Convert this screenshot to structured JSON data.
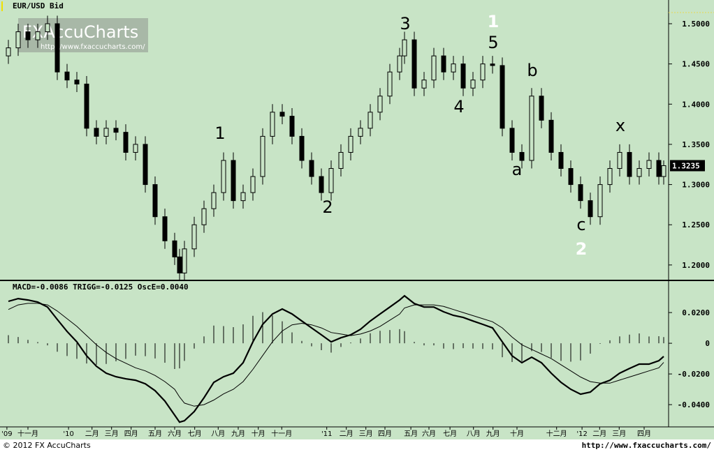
{
  "chart_data": [
    {
      "type": "candlestick",
      "title": "EUR/USD Bid",
      "x": [
        1,
        3,
        5,
        7,
        9,
        11,
        13,
        15,
        17,
        19,
        21,
        23,
        25,
        27,
        29,
        31,
        33,
        35,
        36,
        37,
        39,
        41,
        43,
        45,
        47,
        49,
        51,
        53,
        55,
        57,
        59,
        61,
        63,
        65,
        67,
        69,
        71,
        73,
        75,
        77,
        79,
        81,
        82,
        84,
        86,
        88,
        90,
        92,
        94,
        96,
        98,
        100,
        102,
        104,
        106,
        108,
        110,
        112,
        114,
        116,
        118,
        120,
        122,
        124,
        126,
        128,
        130,
        132,
        134,
        135
      ],
      "open": [
        1.46,
        1.47,
        1.49,
        1.48,
        1.49,
        1.5,
        1.44,
        1.43,
        1.425,
        1.37,
        1.36,
        1.37,
        1.365,
        1.34,
        1.35,
        1.3,
        1.26,
        1.23,
        1.21,
        1.19,
        1.22,
        1.25,
        1.27,
        1.29,
        1.33,
        1.28,
        1.29,
        1.31,
        1.36,
        1.39,
        1.385,
        1.36,
        1.33,
        1.31,
        1.29,
        1.32,
        1.34,
        1.36,
        1.37,
        1.39,
        1.41,
        1.44,
        1.46,
        1.48,
        1.42,
        1.43,
        1.46,
        1.44,
        1.45,
        1.42,
        1.43,
        1.45,
        1.448,
        1.37,
        1.34,
        1.33,
        1.41,
        1.38,
        1.34,
        1.32,
        1.3,
        1.28,
        1.26,
        1.3,
        1.32,
        1.34,
        1.31,
        1.32,
        1.33,
        1.31
      ],
      "high": [
        1.48,
        1.5,
        1.5,
        1.5,
        1.51,
        1.51,
        1.45,
        1.44,
        1.435,
        1.38,
        1.38,
        1.38,
        1.375,
        1.36,
        1.36,
        1.31,
        1.27,
        1.24,
        1.22,
        1.23,
        1.26,
        1.28,
        1.3,
        1.34,
        1.34,
        1.3,
        1.32,
        1.37,
        1.4,
        1.4,
        1.395,
        1.37,
        1.34,
        1.32,
        1.33,
        1.35,
        1.37,
        1.38,
        1.4,
        1.42,
        1.45,
        1.47,
        1.49,
        1.49,
        1.44,
        1.47,
        1.47,
        1.46,
        1.46,
        1.44,
        1.46,
        1.46,
        1.458,
        1.38,
        1.35,
        1.42,
        1.42,
        1.39,
        1.35,
        1.33,
        1.31,
        1.29,
        1.31,
        1.33,
        1.35,
        1.35,
        1.33,
        1.34,
        1.34,
        1.33
      ],
      "low": [
        1.45,
        1.46,
        1.47,
        1.47,
        1.48,
        1.43,
        1.42,
        1.415,
        1.36,
        1.35,
        1.35,
        1.355,
        1.33,
        1.33,
        1.29,
        1.25,
        1.22,
        1.2,
        1.18,
        1.18,
        1.21,
        1.24,
        1.26,
        1.28,
        1.27,
        1.27,
        1.28,
        1.3,
        1.35,
        1.375,
        1.35,
        1.32,
        1.3,
        1.28,
        1.28,
        1.31,
        1.33,
        1.35,
        1.36,
        1.38,
        1.4,
        1.43,
        1.45,
        1.41,
        1.41,
        1.42,
        1.43,
        1.43,
        1.41,
        1.41,
        1.42,
        1.438,
        1.36,
        1.33,
        1.32,
        1.32,
        1.37,
        1.33,
        1.31,
        1.29,
        1.27,
        1.25,
        1.25,
        1.29,
        1.31,
        1.3,
        1.3,
        1.31,
        1.3,
        1.3
      ],
      "close": [
        1.47,
        1.49,
        1.48,
        1.49,
        1.5,
        1.44,
        1.43,
        1.425,
        1.37,
        1.36,
        1.37,
        1.365,
        1.34,
        1.35,
        1.3,
        1.26,
        1.23,
        1.21,
        1.19,
        1.22,
        1.25,
        1.27,
        1.29,
        1.33,
        1.28,
        1.29,
        1.31,
        1.36,
        1.39,
        1.385,
        1.36,
        1.33,
        1.31,
        1.29,
        1.32,
        1.34,
        1.36,
        1.37,
        1.39,
        1.41,
        1.44,
        1.46,
        1.48,
        1.42,
        1.43,
        1.46,
        1.44,
        1.45,
        1.42,
        1.43,
        1.45,
        1.448,
        1.37,
        1.34,
        1.33,
        1.41,
        1.38,
        1.34,
        1.32,
        1.3,
        1.28,
        1.26,
        1.3,
        1.32,
        1.34,
        1.31,
        1.32,
        1.33,
        1.31,
        1.3235
      ],
      "xlim": [
        0,
        136
      ],
      "ylim": [
        1.1808,
        1.5295
      ],
      "yticks": [
        {
          "value": 1.5,
          "label": "1.5000"
        },
        {
          "value": 1.45,
          "label": "1.4500"
        },
        {
          "value": 1.4,
          "label": "1.4000"
        },
        {
          "value": 1.35,
          "label": "1.3500"
        },
        {
          "value": 1.3,
          "label": "1.3000"
        },
        {
          "value": 1.25,
          "label": "1.2500"
        },
        {
          "value": 1.2,
          "label": "1.2000"
        }
      ],
      "last_price": 1.3235,
      "annotations": [
        "1",
        "2",
        "3",
        "4",
        "5",
        "a",
        "b",
        "c",
        "x"
      ],
      "highlight_annotations": [
        "1",
        "2"
      ]
    },
    {
      "type": "macd",
      "title": "MACD=-0.0086 TRIGG=-0.0125 OscE=0.0040",
      "x": [
        1,
        3,
        5,
        7,
        9,
        11,
        13,
        15,
        17,
        19,
        21,
        23,
        25,
        27,
        29,
        31,
        33,
        35,
        36,
        37,
        39,
        41,
        43,
        45,
        47,
        49,
        51,
        53,
        55,
        57,
        59,
        61,
        63,
        65,
        67,
        69,
        71,
        73,
        75,
        77,
        79,
        81,
        82,
        84,
        86,
        88,
        90,
        92,
        94,
        96,
        98,
        100,
        102,
        104,
        106,
        108,
        110,
        112,
        114,
        116,
        118,
        120,
        122,
        124,
        126,
        128,
        130,
        132,
        134,
        135
      ],
      "macd": [
        0.0273,
        0.0291,
        0.0282,
        0.0268,
        0.0236,
        0.0155,
        0.0077,
        0.0009,
        -0.0082,
        -0.015,
        -0.0195,
        -0.0218,
        -0.0232,
        -0.0241,
        -0.0264,
        -0.0309,
        -0.0377,
        -0.0468,
        -0.0514,
        -0.0505,
        -0.0445,
        -0.0355,
        -0.0255,
        -0.0218,
        -0.0195,
        -0.0127,
        0.0009,
        0.0123,
        0.0191,
        0.0223,
        0.0191,
        0.0145,
        0.01,
        0.0055,
        0.0009,
        0.0036,
        0.0055,
        0.0091,
        0.0145,
        0.0191,
        0.0236,
        0.0282,
        0.0309,
        0.0259,
        0.0236,
        0.0236,
        0.0205,
        0.0182,
        0.0168,
        0.0145,
        0.0123,
        0.01,
        0.0009,
        -0.0082,
        -0.0127,
        -0.0091,
        -0.0127,
        -0.0195,
        -0.0255,
        -0.03,
        -0.0332,
        -0.0318,
        -0.0264,
        -0.0241,
        -0.0195,
        -0.0164,
        -0.0136,
        -0.0136,
        -0.0114,
        -0.0086
      ],
      "trigger": [
        0.022,
        0.025,
        0.026,
        0.026,
        0.025,
        0.021,
        0.016,
        0.011,
        0.005,
        -0.001,
        -0.006,
        -0.01,
        -0.013,
        -0.016,
        -0.018,
        -0.021,
        -0.025,
        -0.03,
        -0.035,
        -0.039,
        -0.041,
        -0.04,
        -0.037,
        -0.033,
        -0.03,
        -0.025,
        -0.017,
        -0.008,
        0.001,
        0.008,
        0.012,
        0.013,
        0.012,
        0.01,
        0.007,
        0.006,
        0.005,
        0.006,
        0.008,
        0.011,
        0.015,
        0.019,
        0.023,
        0.025,
        0.025,
        0.025,
        0.024,
        0.022,
        0.02,
        0.018,
        0.016,
        0.014,
        0.01,
        0.004,
        -0.001,
        -0.004,
        -0.007,
        -0.01,
        -0.014,
        -0.018,
        -0.022,
        -0.025,
        -0.026,
        -0.026,
        -0.024,
        -0.022,
        -0.02,
        -0.018,
        -0.016,
        -0.0125
      ],
      "oscillator": [
        0.0053,
        0.0041,
        0.0022,
        0.0008,
        -0.0014,
        -0.0055,
        -0.0083,
        -0.0101,
        -0.0132,
        -0.014,
        -0.0135,
        -0.0118,
        -0.0102,
        -0.0081,
        -0.0084,
        -0.0099,
        -0.0127,
        -0.0168,
        -0.0164,
        -0.0115,
        -0.0035,
        0.0045,
        0.0115,
        0.0112,
        0.0105,
        0.0123,
        0.0179,
        0.0203,
        0.0181,
        0.0143,
        0.0071,
        0.0015,
        -0.002,
        -0.0045,
        -0.0061,
        -0.0024,
        0.0005,
        0.0031,
        0.0065,
        0.0081,
        0.0086,
        0.0092,
        0.0079,
        0.0009,
        -0.0014,
        -0.0014,
        -0.0035,
        -0.0038,
        -0.0032,
        -0.0035,
        -0.0037,
        -0.004,
        -0.0091,
        -0.0122,
        -0.0117,
        -0.0051,
        -0.0057,
        -0.0095,
        -0.0115,
        -0.012,
        -0.0112,
        -0.0068,
        -0.0004,
        0.0019,
        0.0045,
        0.0056,
        0.0064,
        0.0044,
        0.0046,
        0.004
      ],
      "xlim": [
        0,
        136
      ],
      "ylim": [
        -0.0545,
        0.0405
      ],
      "yticks": [
        {
          "value": 0.02,
          "label": "0.0200"
        },
        0,
        {
          "value": -0.02,
          "label": "-0.0200"
        },
        {
          "value": -0.04,
          "label": "-0.0400"
        }
      ],
      "xticks": [
        {
          "value": 0.7,
          "label": "'09"
        },
        {
          "value": 5,
          "label": "十一月"
        },
        {
          "value": 13.3,
          "label": "'10"
        },
        {
          "value": 18.1,
          "label": "二月"
        },
        {
          "value": 22.1,
          "label": "三月"
        },
        {
          "value": 26.1,
          "label": "四月"
        },
        {
          "value": 31,
          "label": "五月"
        },
        {
          "value": 35,
          "label": "六月"
        },
        {
          "value": 39.1,
          "label": "七月"
        },
        {
          "value": 43.9,
          "label": "八月"
        },
        {
          "value": 48,
          "label": "九月"
        },
        {
          "value": 52.1,
          "label": "十月"
        },
        {
          "value": 56.9,
          "label": "十一月"
        },
        {
          "value": 66.1,
          "label": "'11"
        },
        {
          "value": 70.1,
          "label": "二月"
        },
        {
          "value": 74.1,
          "label": "三月"
        },
        {
          "value": 78,
          "label": "四月"
        },
        {
          "value": 83.3,
          "label": "五月"
        },
        {
          "value": 87,
          "label": "六月"
        },
        {
          "value": 91.3,
          "label": "七月"
        },
        {
          "value": 96.1,
          "label": "八月"
        },
        {
          "value": 100.1,
          "label": "九月"
        },
        {
          "value": 105,
          "label": "十月"
        },
        {
          "value": 113.1,
          "label": "十二月"
        },
        {
          "value": 118.3,
          "label": "'12"
        },
        {
          "value": 121.9,
          "label": "二月"
        },
        {
          "value": 125.9,
          "label": "三月"
        },
        {
          "value": 131,
          "label": "四月"
        }
      ]
    }
  ],
  "watermark": {
    "brand": "FXAccuCharts",
    "url": "http://www.fxaccucharts.com/"
  },
  "footer": {
    "copyright": "© 2012 FX AccuCharts",
    "url": "http://www.fxaccucharts.com/"
  }
}
